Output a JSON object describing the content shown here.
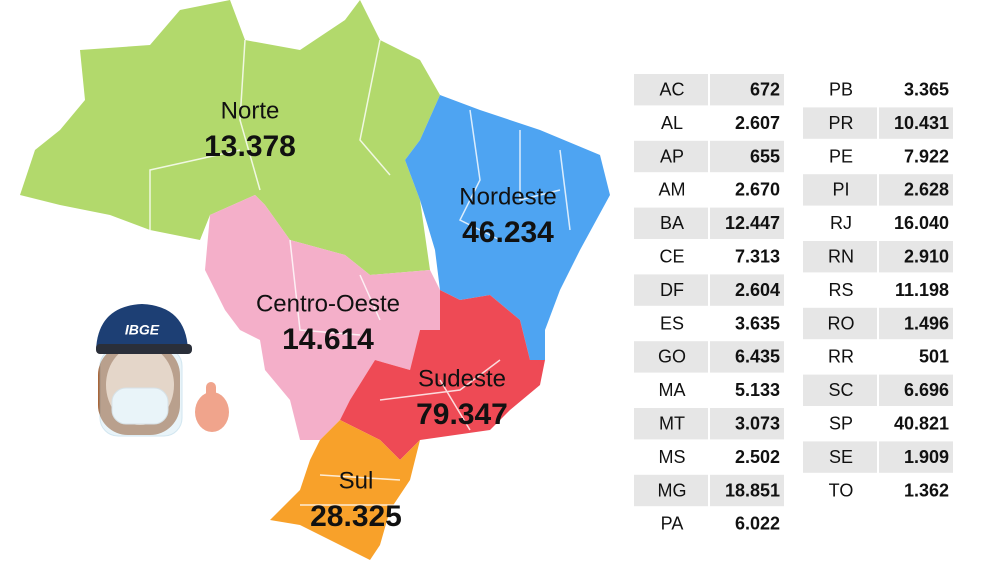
{
  "regions": [
    {
      "name": "Norte",
      "value": "13.378"
    },
    {
      "name": "Nordeste",
      "value": "46.234"
    },
    {
      "name": "Centro-Oeste",
      "value": "14.614"
    },
    {
      "name": "Sudeste",
      "value": "79.347"
    },
    {
      "name": "Sul",
      "value": "28.325"
    }
  ],
  "mascot": {
    "cap_text": "IBGE"
  },
  "table": {
    "rows": [
      [
        "AC",
        "672"
      ],
      [
        "AL",
        "2.607"
      ],
      [
        "AP",
        "655"
      ],
      [
        "AM",
        "2.670"
      ],
      [
        "BA",
        "12.447"
      ],
      [
        "CE",
        "7.313"
      ],
      [
        "DF",
        "2.604"
      ],
      [
        "ES",
        "3.635"
      ],
      [
        "GO",
        "6.435"
      ],
      [
        "MA",
        "5.133"
      ],
      [
        "MT",
        "3.073"
      ],
      [
        "MS",
        "2.502"
      ],
      [
        "MG",
        "18.851"
      ],
      [
        "PA",
        "6.022"
      ],
      [
        "PB",
        "3.365"
      ],
      [
        "PR",
        "10.431"
      ],
      [
        "PE",
        "7.922"
      ],
      [
        "PI",
        "2.628"
      ],
      [
        "RJ",
        "16.040"
      ],
      [
        "RN",
        "2.910"
      ],
      [
        "RS",
        "11.198"
      ],
      [
        "RO",
        "1.496"
      ],
      [
        "RR",
        "501"
      ],
      [
        "SC",
        "6.696"
      ],
      [
        "SP",
        "40.821"
      ],
      [
        "SE",
        "1.909"
      ],
      [
        "TO",
        "1.362"
      ]
    ]
  }
}
